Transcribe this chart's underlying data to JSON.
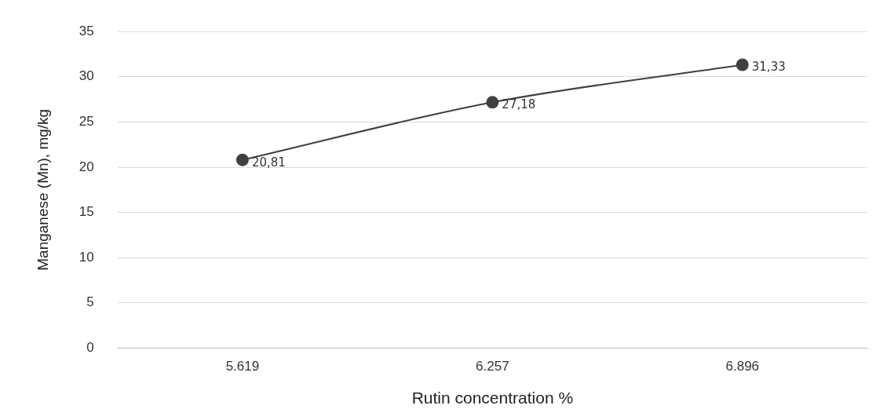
{
  "chart_data": {
    "type": "line",
    "xlabel": "Rutin concentration %",
    "ylabel": "Manganese (Mn), mg/kg",
    "categories": [
      "5.619",
      "6.257",
      "6.896"
    ],
    "series": [
      {
        "color": "#404040",
        "values": [
          20.81,
          27.18,
          31.33
        ],
        "value_labels": [
          "20,81",
          "27,18",
          "31,33"
        ]
      }
    ],
    "ylim": [
      0,
      35
    ],
    "yticks": [
      0,
      5,
      10,
      15,
      20,
      25,
      30,
      35
    ],
    "grid": "y",
    "legend": false,
    "marker": "circle",
    "line_style": "solid"
  }
}
